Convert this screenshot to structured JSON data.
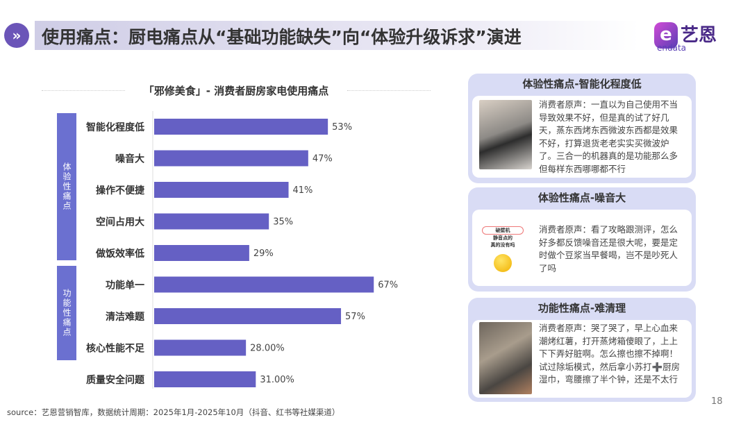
{
  "header": {
    "title": "使用痛点：厨电痛点从“基础功能缺失”向“体验升级诉求”演进",
    "icon": "double-chevron-right-icon"
  },
  "logo": {
    "cn": "艺恩",
    "en": "endata"
  },
  "chart_data": {
    "type": "bar",
    "orientation": "horizontal",
    "title": "「邪修美食」- 消费者厨房家电使用痛点",
    "groups": [
      {
        "name": "体验性痛点",
        "categories": [
          "智能化程度低",
          "噪音大",
          "操作不便捷",
          "空间占用大",
          "做饭效率低"
        ]
      },
      {
        "name": "功能性痛点",
        "categories": [
          "功能单一",
          "清洁难题",
          "核心性能不足",
          "质量安全问题"
        ]
      }
    ],
    "categories": [
      "智能化程度低",
      "噪音大",
      "操作不便捷",
      "空间占用大",
      "做饭效率低",
      "功能单一",
      "清洁难题",
      "核心性能不足",
      "质量安全问题"
    ],
    "values": [
      53,
      47,
      41,
      35,
      29,
      67,
      57,
      28,
      31
    ],
    "labels": [
      "53%",
      "47%",
      "41%",
      "35%",
      "29%",
      "67%",
      "57%",
      "28.00%",
      "31.00%"
    ],
    "unit": "%",
    "bar_color": "#6560c4",
    "xlim": [
      0,
      100
    ]
  },
  "cards": [
    {
      "title": "体验性痛点-智能化程度低",
      "text": "消费者原声：一直以为自己使用不当导致效果不好，但是真的试了好几天，蒸东西烤东西微波东西都是效果不好，打算退货老老实实买微波炉了。三合一的机器真的是功能那么多但每样东西哪哪都不行"
    },
    {
      "title": "体验性痛点-噪音大",
      "text": "消费者原声：看了攻略跟测评，怎么好多都反馈噪音还是很大呢，要是定时做个豆浆当早餐喝，岂不是吵死人了吗",
      "image_text": [
        "破壁机",
        "静音点的",
        "真的没有吗"
      ]
    },
    {
      "title": "功能性痛点-难清理",
      "text": "消费者原声：哭了哭了，早上心血来潮烤红薯，打开蒸烤箱傻眼了，上上下下弄好脏啊。怎么擦也擦不掉啊！试过除垢模式，然后拿小苏打➕厨房湿巾，弯腰擦了半个钟，还是不太行"
    }
  ],
  "footer": {
    "source": "source：艺恩营销智库，数据统计周期：2025年1月-2025年10月（抖音、红书等社媒渠道）",
    "page": "18"
  }
}
